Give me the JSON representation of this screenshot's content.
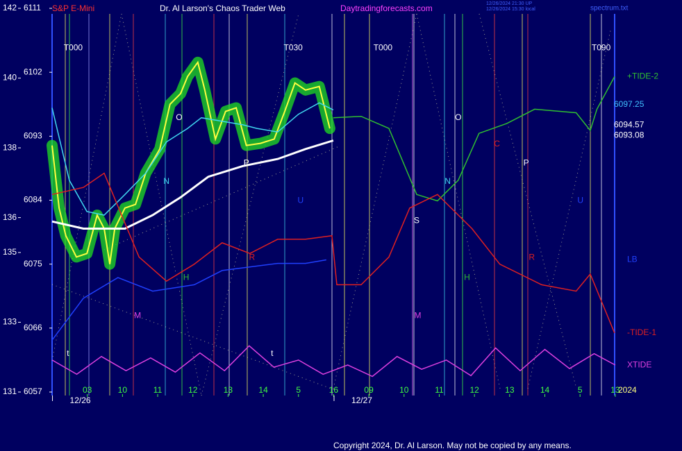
{
  "chart_data": {
    "type": "line",
    "title": "Dr. Al Larson's Chaos Trader Web",
    "instrument": "S&P E-Mini",
    "site": "Daytradingforecasts.com",
    "stamp_lines": [
      "12/26/2024 21:30 UP",
      "12/26/2024 15:30 local"
    ],
    "file_label": "spectrum.txt",
    "copyright": "Copyright 2024, Dr. Al Larson. May not be copied by any means.",
    "year_label": "2024",
    "xlim": [
      0,
      16.2
    ],
    "xticks": [
      {
        "value": 1,
        "label": "03"
      },
      {
        "value": 2,
        "label": "10"
      },
      {
        "value": 3,
        "label": "11"
      },
      {
        "value": 4,
        "label": "12"
      },
      {
        "value": 5,
        "label": "13"
      },
      {
        "value": 6,
        "label": "14"
      },
      {
        "value": 7,
        "label": "5"
      },
      {
        "value": 8,
        "label": "16"
      },
      {
        "value": 9,
        "label": "09"
      },
      {
        "value": 10,
        "label": "10"
      },
      {
        "value": 11,
        "label": "11"
      },
      {
        "value": 12,
        "label": "12"
      },
      {
        "value": 13,
        "label": "13"
      },
      {
        "value": 14,
        "label": "14"
      },
      {
        "value": 15,
        "label": "5"
      },
      {
        "value": 16,
        "label": "13"
      }
    ],
    "date_ticks": [
      {
        "value": 0.8,
        "label": "12/26"
      },
      {
        "value": 8.8,
        "label": "12/27"
      }
    ],
    "ylim": [
      6057,
      6111
    ],
    "yticks": [
      6057,
      6066,
      6075,
      6084,
      6093,
      6102,
      6111
    ],
    "y2lim": [
      131,
      142
    ],
    "y2ticks": [
      131,
      133,
      135,
      136,
      138,
      140,
      142
    ],
    "price_labels": [
      6097.25,
      6094.57,
      6093.08
    ],
    "price_label_colors": [
      "#40c0ff",
      "#ffffff",
      "#ffffff"
    ],
    "series": [
      {
        "color": "#ffff40",
        "halo": "#20e020",
        "x": [
          0,
          0.2,
          0.39,
          0.69,
          0.99,
          1.28,
          1.48,
          1.64,
          1.78,
          2.07,
          2.37,
          2.66,
          3.06,
          3.35,
          3.65,
          3.85,
          4.14,
          4.34,
          4.64,
          4.93,
          5.23,
          5.52,
          5.92,
          6.31,
          6.61,
          6.9,
          7.2,
          7.59,
          7.89
        ],
        "values": [
          6091.7,
          6082.9,
          6079,
          6076,
          6076.5,
          6081.9,
          6080,
          6075,
          6080,
          6082.9,
          6083.4,
          6087.8,
          6091.2,
          6097.5,
          6099,
          6101.4,
          6103.4,
          6099.5,
          6092.6,
          6096.5,
          6097,
          6091.7,
          6092,
          6092.6,
          6096.5,
          6100.5,
          6099.5,
          6100,
          6094.1
        ]
      },
      {
        "color": "#40d8f0",
        "x": [
          0,
          0.49,
          0.99,
          1.48,
          2.07,
          2.66,
          3.25,
          3.85,
          4.24,
          4.83,
          5.42,
          5.82,
          6.41,
          7,
          7.59,
          7.99
        ],
        "values": [
          6097,
          6086.8,
          6082.4,
          6081.9,
          6084.8,
          6087.8,
          6092.2,
          6094.1,
          6095.6,
          6095.1,
          6094.6,
          6094.1,
          6093.6,
          6096.1,
          6097.7,
          6096.7
        ]
      },
      {
        "color": "#ffffff",
        "x": [
          0,
          0.89,
          2.07,
          2.86,
          3.65,
          4.44,
          5.42,
          6.41,
          7.2,
          7.99
        ],
        "values": [
          6081,
          6080,
          6080,
          6081.9,
          6084.4,
          6087.3,
          6088.8,
          6089.8,
          6091.2,
          6092.4
        ]
      },
      {
        "name": "+TIDE-2",
        "color": "#30c030",
        "x": [
          7.99,
          8.78,
          9.57,
          10.36,
          10.95,
          11.54,
          12.13,
          12.92,
          13.71,
          14.89,
          15.29,
          15.48,
          15.98
        ],
        "values": [
          6095.6,
          6095.8,
          6094.1,
          6084.8,
          6083.9,
          6086.8,
          6093.4,
          6094.8,
          6096.8,
          6096.3,
          6093.8,
          6096.8,
          6101.4
        ]
      },
      {
        "name": "LB",
        "color": "#2040ff",
        "x": [
          0,
          0.89,
          1.87,
          2.86,
          4.04,
          4.83,
          6.41,
          7.2,
          7.79
        ],
        "values": [
          6064.3,
          6070.2,
          6073.1,
          6071.2,
          6072.1,
          6074.1,
          6075.1,
          6075.1,
          6075.6
        ]
      },
      {
        "name": "-TIDE-1",
        "color": "#e02020",
        "x": [
          0,
          0.89,
          1.48,
          2.47,
          3.25,
          4.04,
          4.83,
          5.62,
          6.41,
          7.2,
          7.95,
          8.09,
          8.78,
          9.57,
          10.16,
          10.95,
          11.93,
          12.72,
          13.91,
          14.89,
          15.29,
          15.98
        ],
        "values": [
          6084.8,
          6085.8,
          6087.8,
          6076,
          6072.6,
          6075,
          6078,
          6076.5,
          6078.5,
          6078.5,
          6079,
          6072.1,
          6072.1,
          6076,
          6082.9,
          6084.8,
          6080,
          6075,
          6072.1,
          6071.2,
          6073.6,
          6065.3
        ]
      },
      {
        "name": "XTIDE",
        "color": "#e040e0",
        "x": [
          0,
          0.7,
          1.4,
          2.1,
          2.8,
          3.5,
          4.2,
          4.9,
          5.6,
          6.3,
          7,
          7.7,
          8.4,
          9.1,
          9.8,
          10.5,
          11.2,
          11.9,
          12.6,
          13.3,
          14,
          14.7,
          15.4,
          16
        ],
        "values": [
          6061.5,
          6059.5,
          6062,
          6060,
          6061.8,
          6059.8,
          6062.5,
          6060,
          6063.5,
          6060.5,
          6061.5,
          6059.5,
          6060.8,
          6059.2,
          6062,
          6060.2,
          6061.5,
          6059.3,
          6063.2,
          6060,
          6063,
          6060.3,
          6062.4,
          6060.8
        ]
      }
    ],
    "annotations": [
      {
        "text": "T000",
        "x": 0.6,
        "y": 6105.4,
        "color": "#ffffff"
      },
      {
        "text": "T030",
        "x": 6.85,
        "y": 6105.4,
        "color": "#ffffff"
      },
      {
        "text": "T000",
        "x": 9.4,
        "y": 6105.4,
        "color": "#ffffff"
      },
      {
        "text": "T090",
        "x": 15.6,
        "y": 6105.4,
        "color": "#ffffff"
      },
      {
        "text": "O",
        "x": 3.61,
        "y": 6095.6,
        "color": "#ffffff"
      },
      {
        "text": "O",
        "x": 11.54,
        "y": 6095.6,
        "color": "#ffffff"
      },
      {
        "text": "N",
        "x": 3.25,
        "y": 6086.6,
        "color": "#40d8f0"
      },
      {
        "text": "N",
        "x": 11.24,
        "y": 6086.6,
        "color": "#40d8f0"
      },
      {
        "text": "H",
        "x": 3.81,
        "y": 6073.1,
        "color": "#30c030"
      },
      {
        "text": "H",
        "x": 11.79,
        "y": 6073.1,
        "color": "#30c030"
      },
      {
        "text": "M",
        "x": 2.43,
        "y": 6067.7,
        "color": "#e040e0"
      },
      {
        "text": "M",
        "x": 10.39,
        "y": 6067.7,
        "color": "#e040e0"
      },
      {
        "text": "R",
        "x": 5.68,
        "y": 6075.9,
        "color": "#e02020"
      },
      {
        "text": "R",
        "x": 13.63,
        "y": 6075.9,
        "color": "#e02020"
      },
      {
        "text": "P",
        "x": 5.52,
        "y": 6089.2,
        "color": "#ffffff"
      },
      {
        "text": "P",
        "x": 13.47,
        "y": 6089.2,
        "color": "#ffffff"
      },
      {
        "text": "C",
        "x": 12.64,
        "y": 6091.9,
        "color": "#e02020"
      },
      {
        "text": "S",
        "x": 10.36,
        "y": 6081.1,
        "color": "#ffffff"
      },
      {
        "text": "U",
        "x": 7.06,
        "y": 6083.9,
        "color": "#2040ff"
      },
      {
        "text": "U",
        "x": 15.01,
        "y": 6083.9,
        "color": "#2040ff"
      },
      {
        "text": "t",
        "x": 0.45,
        "y": 6062.4,
        "color": "#ffffff"
      },
      {
        "text": "t",
        "x": 6.25,
        "y": 6062.4,
        "color": "#ffffff"
      }
    ]
  }
}
